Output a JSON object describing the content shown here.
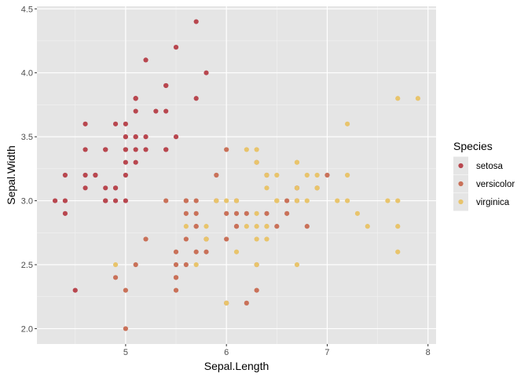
{
  "chart_data": {
    "type": "scatter",
    "xlabel": "Sepal.Length",
    "ylabel": "Sepal.Width",
    "xlim": [
      4.12,
      8.08
    ],
    "ylim": [
      1.88,
      4.52
    ],
    "xticks": [
      5,
      6,
      7,
      8
    ],
    "xtick_labels": [
      "5",
      "6",
      "7",
      "8"
    ],
    "yticks": [
      2.0,
      2.5,
      3.0,
      3.5,
      4.0,
      4.5
    ],
    "ytick_labels": [
      "2.0",
      "2.5",
      "3.0",
      "3.5",
      "4.0",
      "4.5"
    ],
    "grid": true,
    "legend": {
      "title": "Species",
      "placement": "right"
    },
    "series": [
      {
        "name": "setosa",
        "color": "#b8474f",
        "x": [
          5.1,
          4.9,
          4.7,
          4.6,
          5.0,
          5.4,
          4.6,
          5.0,
          4.4,
          4.9,
          5.4,
          4.8,
          4.8,
          4.3,
          5.8,
          5.7,
          5.4,
          5.1,
          5.7,
          5.1,
          5.4,
          5.1,
          4.6,
          5.1,
          4.8,
          5.0,
          5.0,
          5.2,
          5.2,
          4.7,
          4.8,
          5.4,
          5.2,
          5.5,
          4.9,
          5.0,
          5.5,
          4.9,
          4.4,
          5.1,
          5.0,
          4.5,
          4.4,
          5.0,
          5.1,
          4.8,
          5.1,
          4.6,
          5.3,
          5.0
        ],
        "y": [
          3.5,
          3.0,
          3.2,
          3.1,
          3.6,
          3.9,
          3.4,
          3.4,
          2.9,
          3.1,
          3.7,
          3.4,
          3.0,
          3.0,
          4.0,
          4.4,
          3.9,
          3.5,
          3.8,
          3.8,
          3.4,
          3.7,
          3.6,
          3.3,
          3.4,
          3.0,
          3.4,
          3.5,
          3.4,
          3.2,
          3.1,
          3.4,
          4.1,
          4.2,
          3.1,
          3.2,
          3.5,
          3.6,
          3.0,
          3.4,
          3.5,
          2.3,
          3.2,
          3.5,
          3.8,
          3.0,
          3.8,
          3.2,
          3.7,
          3.3
        ]
      },
      {
        "name": "versicolor",
        "color": "#c97159",
        "x": [
          7.0,
          6.4,
          6.9,
          5.5,
          6.5,
          5.7,
          6.3,
          4.9,
          6.6,
          5.2,
          5.0,
          5.9,
          6.0,
          6.1,
          5.6,
          6.7,
          5.6,
          5.8,
          6.2,
          5.6,
          5.9,
          6.1,
          6.3,
          6.1,
          6.4,
          6.6,
          6.8,
          6.7,
          6.0,
          5.7,
          5.5,
          5.5,
          5.8,
          6.0,
          5.4,
          6.0,
          6.7,
          6.3,
          5.6,
          5.5,
          5.5,
          6.1,
          5.8,
          5.0,
          5.6,
          5.7,
          5.7,
          6.2,
          5.1,
          5.7
        ],
        "y": [
          3.2,
          3.2,
          3.1,
          2.3,
          2.8,
          2.8,
          3.3,
          2.4,
          2.9,
          2.7,
          2.0,
          3.0,
          2.2,
          2.9,
          2.9,
          3.1,
          3.0,
          2.7,
          2.2,
          2.5,
          3.2,
          2.8,
          2.5,
          2.8,
          2.9,
          3.0,
          2.8,
          3.0,
          2.9,
          2.6,
          2.4,
          2.4,
          2.7,
          2.7,
          3.0,
          3.4,
          3.1,
          2.3,
          3.0,
          2.5,
          2.6,
          3.0,
          2.6,
          2.3,
          2.7,
          3.0,
          2.9,
          2.9,
          2.5,
          2.8
        ]
      },
      {
        "name": "virginica",
        "color": "#e8c46c",
        "x": [
          6.3,
          5.8,
          7.1,
          6.3,
          6.5,
          7.6,
          4.9,
          7.3,
          6.7,
          7.2,
          6.5,
          6.4,
          6.8,
          5.7,
          5.8,
          6.4,
          6.5,
          7.7,
          7.7,
          6.0,
          6.9,
          5.6,
          7.7,
          6.3,
          6.7,
          7.2,
          6.2,
          6.1,
          6.4,
          7.2,
          7.4,
          7.9,
          6.4,
          6.3,
          6.1,
          7.7,
          6.3,
          6.4,
          6.0,
          6.9,
          6.7,
          6.9,
          5.8,
          6.8,
          6.7,
          6.7,
          6.3,
          6.5,
          6.2,
          5.9
        ],
        "y": [
          3.3,
          2.7,
          3.0,
          2.9,
          3.0,
          3.0,
          2.5,
          2.9,
          2.5,
          3.6,
          3.2,
          2.7,
          3.0,
          2.5,
          2.8,
          3.2,
          3.0,
          3.8,
          2.6,
          2.2,
          3.2,
          2.8,
          2.8,
          2.7,
          3.3,
          3.2,
          2.8,
          3.0,
          2.8,
          3.0,
          2.8,
          3.8,
          2.8,
          2.8,
          2.6,
          3.0,
          3.4,
          3.1,
          3.0,
          3.1,
          3.1,
          3.1,
          2.7,
          3.2,
          3.3,
          3.0,
          2.5,
          3.0,
          3.4,
          3.0
        ]
      }
    ]
  }
}
